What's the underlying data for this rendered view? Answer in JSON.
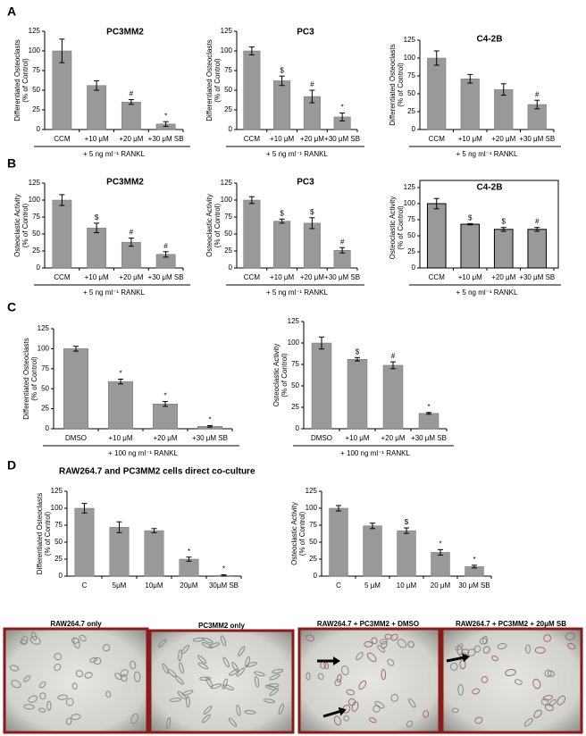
{
  "panel_labels": [
    "A",
    "B",
    "C",
    "D"
  ],
  "coculture_title": "RAW264.7 and PC3MM2 cells direct co-culture",
  "images": [
    {
      "caption": "RAW264.7 only"
    },
    {
      "caption": "PC3MM2 only"
    },
    {
      "caption": "RAW264.7 + PC3MM2 + DMSO"
    },
    {
      "caption": "RAW264.7 + PC3MM2 + 20μM SB"
    }
  ],
  "chart_data": [
    {
      "type": "bar",
      "title": "PC3MM2",
      "ylabel": [
        "Differentiated Osteoclasts",
        "(% of Control)"
      ],
      "categories": [
        "CCM",
        "+10 μM",
        "+20 μM",
        "+30 μM SB"
      ],
      "values": [
        100,
        56,
        35,
        7
      ],
      "errors": [
        15,
        6,
        3,
        3
      ],
      "annotations": [
        null,
        null,
        "#",
        "*"
      ],
      "group_label": "+ 5 ng ml⁻¹ RANKL",
      "color": "#999999",
      "ylim": [
        0,
        125
      ],
      "yticks": [
        0,
        25,
        50,
        75,
        100,
        125
      ]
    },
    {
      "type": "bar",
      "title": "PC3",
      "ylabel": [
        "Differentiated Osteoclasts",
        "(% of Control)"
      ],
      "categories": [
        "CCM",
        "+10 μM",
        "+20 μM",
        "+30 μM SB"
      ],
      "values": [
        100,
        62,
        42,
        16
      ],
      "errors": [
        5,
        6,
        8,
        5
      ],
      "annotations": [
        null,
        "$",
        "#",
        "*"
      ],
      "group_label": "+ 5 ng ml⁻¹ RANKL",
      "color": "#999999",
      "ylim": [
        0,
        125
      ],
      "yticks": [
        0,
        25,
        50,
        75,
        100,
        125
      ]
    },
    {
      "type": "bar",
      "title": "C4-2B",
      "ylabel": [
        "Differentiated Osteoclasts",
        "(% of Control)"
      ],
      "categories": [
        "CCM",
        "+10 μM",
        "+20 μM",
        "+30 μM SB"
      ],
      "values": [
        100,
        71,
        56,
        35
      ],
      "errors": [
        10,
        6,
        8,
        6
      ],
      "annotations": [
        null,
        null,
        null,
        "#"
      ],
      "group_label": "+ 5 ng ml⁻¹ RANKL",
      "color": "#999999",
      "ylim": [
        0,
        125
      ],
      "yticks": [
        0,
        25,
        50,
        75,
        100,
        125
      ]
    },
    {
      "type": "bar",
      "title": "PC3MM2",
      "ylabel": [
        "Osteoclastic Activity",
        "(% of Control)"
      ],
      "categories": [
        "CCM",
        "+10 μM",
        "+20 μM",
        "+30 μM SB"
      ],
      "values": [
        100,
        59,
        38,
        20
      ],
      "errors": [
        8,
        7,
        6,
        4
      ],
      "annotations": [
        null,
        "$",
        "#",
        "#"
      ],
      "group_label": "+ 5 ng ml⁻¹ RANKL",
      "color": "#999999",
      "ylim": [
        0,
        125
      ],
      "yticks": [
        0,
        25,
        50,
        75,
        100,
        125
      ]
    },
    {
      "type": "bar",
      "title": "PC3",
      "ylabel": [
        "Osteoclastic Activity",
        "(% of Control)"
      ],
      "categories": [
        "CCM",
        "+10 μM",
        "+20 μM",
        "+30 μM SB"
      ],
      "values": [
        100,
        69,
        66,
        26
      ],
      "errors": [
        5,
        3,
        8,
        4
      ],
      "annotations": [
        null,
        "$",
        "$",
        "#"
      ],
      "group_label": "+ 5 ng ml⁻¹ RANKL",
      "color": "#999999",
      "ylim": [
        0,
        125
      ],
      "yticks": [
        0,
        25,
        50,
        75,
        100,
        125
      ]
    },
    {
      "type": "bar",
      "title": "C4-2B",
      "ylabel": [
        "Osteoclastic Activity",
        "(% of Control)"
      ],
      "categories": [
        "CCM",
        "+10 μM",
        "+20 μM",
        "+30 μM SB"
      ],
      "values": [
        100,
        68,
        60,
        60
      ],
      "errors": [
        8,
        1,
        3,
        3
      ],
      "annotations": [
        null,
        "$",
        "$",
        "#"
      ],
      "group_label": "+ 5 ng ml⁻¹ RANKL",
      "color": "#999999",
      "ylim": [
        0,
        125
      ],
      "yticks": [
        0,
        25,
        50,
        75,
        100,
        125
      ]
    },
    {
      "type": "bar",
      "ylabel": [
        "Differentiated Osteoclasts",
        "(% of Control)"
      ],
      "categories": [
        "DMSO",
        "+10 μM",
        "+20 μM",
        "+30 μM SB"
      ],
      "values": [
        100,
        59,
        31,
        3
      ],
      "errors": [
        3,
        3,
        3,
        1
      ],
      "annotations": [
        null,
        "*",
        "*",
        "*"
      ],
      "group_label": "+ 100 ng ml⁻¹ RANKL",
      "color": "#999999",
      "ylim": [
        0,
        125
      ],
      "yticks": [
        0,
        25,
        50,
        75,
        100,
        125
      ]
    },
    {
      "type": "bar",
      "ylabel": [
        "Osteoclastic Activity",
        "(% of Control)"
      ],
      "categories": [
        "DMSO",
        "+10 μM",
        "+20 μM",
        "+30 μM SB"
      ],
      "values": [
        100,
        81,
        74,
        18
      ],
      "errors": [
        7,
        2,
        4,
        1
      ],
      "annotations": [
        null,
        "$",
        "#",
        "*"
      ],
      "group_label": "+ 100 ng ml⁻¹ RANKL",
      "color": "#999999",
      "ylim": [
        0,
        125
      ],
      "yticks": [
        0,
        25,
        50,
        75,
        100,
        125
      ]
    },
    {
      "type": "bar",
      "ylabel": [
        "Differentiated Osteoclasts",
        "(% of Control)"
      ],
      "categories": [
        "C",
        "5μM",
        "10μM",
        "20μM",
        "30μM SB"
      ],
      "values": [
        100,
        72,
        67,
        25,
        1
      ],
      "errors": [
        7,
        8,
        3,
        3,
        1
      ],
      "annotations": [
        null,
        null,
        null,
        "*",
        "*"
      ],
      "color": "#999999",
      "ylim": [
        0,
        125
      ],
      "yticks": [
        0,
        25,
        50,
        75,
        100,
        125
      ]
    },
    {
      "type": "bar",
      "ylabel": [
        "Osteoclastic Activity",
        "(% of Control)"
      ],
      "categories": [
        "C",
        "5 μM",
        "10 μM",
        "20 μM",
        "30 μM SB"
      ],
      "values": [
        100,
        74,
        67,
        35,
        14
      ],
      "errors": [
        4,
        4,
        4,
        4,
        2
      ],
      "annotations": [
        null,
        null,
        "$",
        "*",
        "*"
      ],
      "color": "#999999",
      "ylim": [
        0,
        125
      ],
      "yticks": [
        0,
        25,
        50,
        75,
        100,
        125
      ]
    }
  ]
}
